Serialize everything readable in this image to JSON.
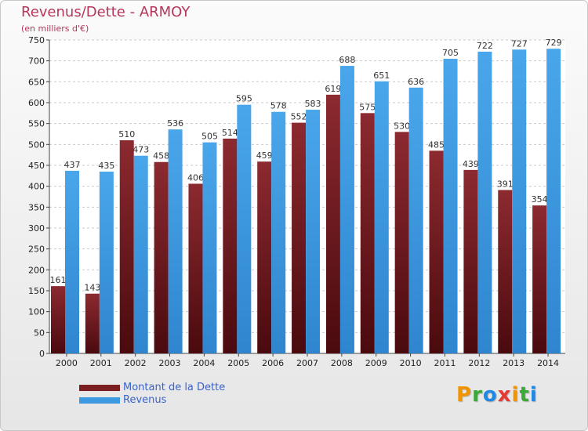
{
  "header": {
    "title": "Revenus/Dette - ARMOY",
    "subtitle": "(en milliers d'€)"
  },
  "chart_data": {
    "type": "bar",
    "categories": [
      "2000",
      "2001",
      "2002",
      "2003",
      "2004",
      "2005",
      "2006",
      "2007",
      "2008",
      "2009",
      "2010",
      "2011",
      "2012",
      "2013",
      "2014"
    ],
    "series": [
      {
        "name": "Montant de la Dette",
        "color": "#7a1e22",
        "values": [
          161,
          143,
          510,
          458,
          406,
          514,
          459,
          552,
          619,
          575,
          530,
          485,
          439,
          391,
          354
        ]
      },
      {
        "name": "Revenus",
        "color": "#3d99e0",
        "values": [
          437,
          435,
          473,
          536,
          505,
          595,
          578,
          583,
          688,
          651,
          636,
          705,
          722,
          727,
          729
        ]
      }
    ],
    "yticks": [
      0,
      50,
      100,
      150,
      200,
      250,
      300,
      350,
      400,
      450,
      500,
      550,
      600,
      650,
      700,
      750
    ],
    "ylim": [
      0,
      750
    ],
    "grid": true,
    "legend_position": "bottom-left"
  },
  "legend": {
    "items": [
      {
        "label": "Montant de la Dette",
        "color": "#7a1e22"
      },
      {
        "label": "Revenus",
        "color": "#3d99e0"
      }
    ]
  },
  "logo": {
    "letters": [
      "P",
      "r",
      "o",
      "x",
      "i",
      "t",
      "i"
    ],
    "colors": [
      "#f29400",
      "#3aa935",
      "#1e88e5",
      "#e53935",
      "#f29400",
      "#3aa935",
      "#1e88e5"
    ]
  }
}
